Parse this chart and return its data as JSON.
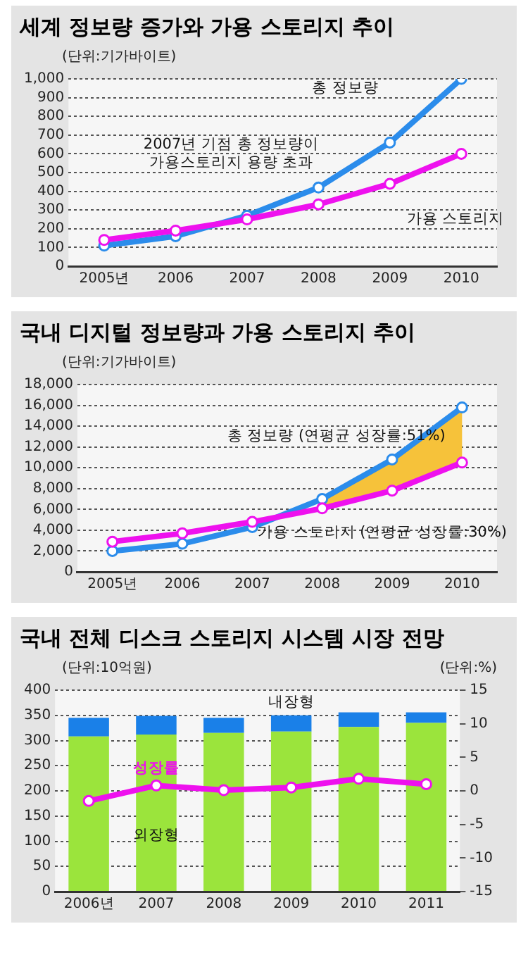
{
  "chart_data": [
    {
      "type": "line",
      "title": "세계 정보량 증가와 가용 스토리지 추이",
      "ylabel": "(단위:기가바이트)",
      "categories": [
        "2005년",
        "2006",
        "2007",
        "2008",
        "2009",
        "2010"
      ],
      "series": [
        {
          "name": "총 정보량",
          "color": "#2b8ceb",
          "values": [
            110,
            160,
            270,
            420,
            660,
            1000
          ]
        },
        {
          "name": "가용 스토리지",
          "color": "#ee11ee",
          "values": [
            140,
            190,
            250,
            330,
            440,
            600
          ]
        }
      ],
      "ylim": [
        0,
        1000
      ],
      "yticks": [
        0,
        100,
        200,
        300,
        400,
        500,
        600,
        700,
        800,
        900,
        {
          "value": 1000,
          "label": "1,000"
        }
      ],
      "grid": "y",
      "marker": "circle",
      "line_style": "solid",
      "annotations": [
        "2007년 기점 총 정보량이 가용스토리지 용량 초과"
      ]
    },
    {
      "type": "line",
      "title": "국내 디지털 정보량과 가용 스토리지 추이",
      "ylabel": "(단위:기가바이트)",
      "categories": [
        "2005년",
        "2006",
        "2007",
        "2008",
        "2009",
        "2010"
      ],
      "series": [
        {
          "name": "총 정보량 (연평균 성장률:51%)",
          "color": "#2b8ceb",
          "values": [
            2000,
            2700,
            4300,
            7000,
            10800,
            15800
          ],
          "lower": [
            null,
            null,
            null,
            6100,
            7800,
            10500
          ],
          "upper": [
            null,
            null,
            null,
            7000,
            10800,
            15800
          ]
        },
        {
          "name": "가용 스토리지 (연평균 성장률:30%)",
          "color": "#ee11ee",
          "values": [
            2900,
            3700,
            4800,
            6100,
            7800,
            10500
          ]
        }
      ],
      "ylim": [
        0,
        18000
      ],
      "yticks": [
        0,
        {
          "value": 2000,
          "label": "2,000"
        },
        {
          "value": 4000,
          "label": "4,000"
        },
        {
          "value": 6000,
          "label": "6,000"
        },
        {
          "value": 8000,
          "label": "8,000"
        },
        {
          "value": 10000,
          "label": "10,000"
        },
        {
          "value": 12000,
          "label": "12,000"
        },
        {
          "value": 14000,
          "label": "14,000"
        },
        {
          "value": 16000,
          "label": "16,000"
        },
        {
          "value": 18000,
          "label": "18,000"
        }
      ],
      "grid": "y",
      "marker": "circle",
      "line_style": "solid"
    },
    {
      "type": "bar",
      "title": "국내 전체 디스크 스토리지 시스템 시장 전망",
      "ylabel": "(단위:10억원)",
      "y2label": "(단위:%)",
      "categories": [
        "2006년",
        "2007",
        "2008",
        "2009",
        "2010",
        "2011"
      ],
      "stacked": true,
      "series": [
        {
          "name": "외장형",
          "color": "#9be43c",
          "values": [
            308,
            312,
            315,
            318,
            327,
            335
          ]
        },
        {
          "name": "내장형",
          "color": "#1a80e8",
          "values": [
            37,
            37,
            30,
            32,
            29,
            21
          ]
        },
        {
          "name": "성장률",
          "type": "line",
          "axis": "y2",
          "color": "#ee11ee",
          "values": [
            -1.5,
            0.8,
            0.1,
            0.5,
            1.8,
            1.0
          ]
        }
      ],
      "ylim": [
        0,
        400
      ],
      "yticks": [
        0,
        50,
        100,
        150,
        200,
        250,
        300,
        350,
        400
      ],
      "y2lim": [
        -15,
        15
      ],
      "y2ticks": [
        -15,
        -10,
        -5,
        0,
        5,
        10,
        15
      ],
      "grid": "y",
      "marker": "circle",
      "line_style": "solid"
    }
  ]
}
